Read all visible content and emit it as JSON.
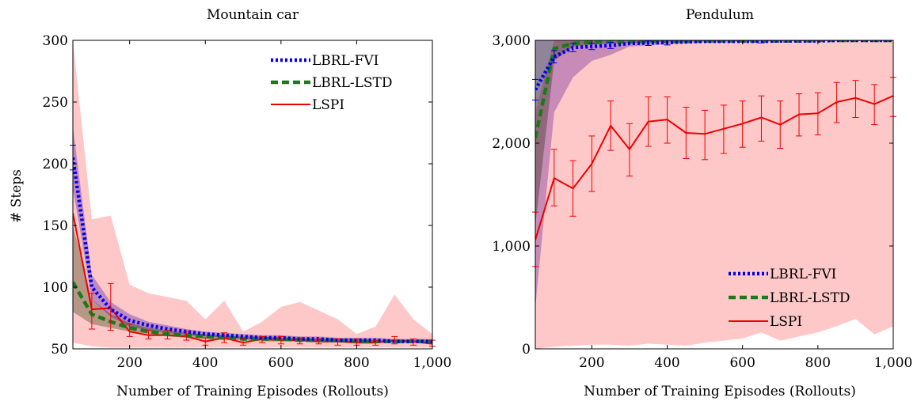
{
  "chart_data": [
    {
      "type": "line",
      "title": "Mountain car",
      "xlabel": "Number of Training Episodes (Rollouts)",
      "ylabel": "# Steps",
      "xlim": [
        50,
        1000
      ],
      "ylim": [
        50,
        300
      ],
      "xticks": [
        200,
        400,
        600,
        800,
        1000
      ],
      "xtick_labels": [
        "200",
        "400",
        "600",
        "800",
        "1,000"
      ],
      "yticks": [
        50,
        100,
        150,
        200,
        250,
        300
      ],
      "ytick_labels": [
        "50",
        "100",
        "150",
        "200",
        "250",
        "300"
      ],
      "grid": false,
      "legend_position": "top-right",
      "x": [
        50,
        100,
        150,
        200,
        250,
        300,
        350,
        400,
        450,
        500,
        550,
        600,
        650,
        700,
        750,
        800,
        850,
        900,
        950,
        1000
      ],
      "series": [
        {
          "name": "LBRL-FVI",
          "color": "#0000ee",
          "style": "dotted",
          "values": [
            205,
            100,
            82,
            73,
            69,
            66,
            64,
            62,
            61,
            60,
            59,
            59,
            58,
            58,
            57,
            57,
            57,
            56,
            56,
            56
          ],
          "band_upper": [
            230,
            110,
            88,
            78,
            72,
            69,
            66,
            64,
            63,
            62,
            61,
            61,
            60,
            60,
            59,
            59,
            59,
            58,
            58,
            58
          ],
          "band_lower": [
            180,
            90,
            76,
            68,
            65,
            63,
            61,
            60,
            59,
            58,
            57,
            57,
            56,
            56,
            56,
            55,
            55,
            55,
            55,
            54
          ],
          "band_color": "#8a6ee6",
          "error_bars": [
            {
              "x": 50,
              "low": 195,
              "high": 215
            }
          ]
        },
        {
          "name": "LBRL-LSTD",
          "color": "#1a7a1a",
          "style": "dashed",
          "values": [
            104,
            78,
            72,
            67,
            64,
            62,
            61,
            60,
            59,
            58,
            58,
            58,
            57,
            57,
            57,
            56,
            56,
            56,
            56,
            56
          ],
          "band_upper": [
            150,
            90,
            78,
            71,
            67,
            65,
            63,
            62,
            61,
            60,
            60,
            59,
            59,
            58,
            58,
            58,
            57,
            57,
            57,
            57
          ],
          "band_lower": [
            80,
            70,
            67,
            64,
            62,
            60,
            59,
            58,
            57,
            57,
            56,
            56,
            56,
            55,
            55,
            55,
            55,
            55,
            55,
            55
          ],
          "band_color": "#7a8a60",
          "error_bars": []
        },
        {
          "name": "LSPI",
          "color": "#ee0000",
          "style": "solid",
          "values": [
            160,
            82,
            83,
            64,
            61,
            61,
            60,
            56,
            59,
            55,
            58,
            57,
            57,
            56,
            56,
            55,
            55,
            57,
            56,
            54
          ],
          "band_upper": [
            300,
            155,
            158,
            102,
            95,
            92,
            89,
            74,
            89,
            64,
            72,
            84,
            88,
            81,
            74,
            62,
            68,
            94,
            74,
            62
          ],
          "band_lower": [
            55,
            52,
            51,
            51,
            51,
            51,
            51,
            51,
            51,
            51,
            51,
            51,
            51,
            51,
            51,
            51,
            51,
            51,
            51,
            51
          ],
          "band_color": "#ffc8c8",
          "error_bars": [
            {
              "x": 100,
              "low": 66,
              "high": 95
            },
            {
              "x": 150,
              "low": 65,
              "high": 103
            },
            {
              "x": 200,
              "low": 60,
              "high": 70
            },
            {
              "x": 250,
              "low": 58,
              "high": 65
            },
            {
              "x": 300,
              "low": 58,
              "high": 65
            },
            {
              "x": 350,
              "low": 57,
              "high": 64
            },
            {
              "x": 400,
              "low": 53,
              "high": 59
            },
            {
              "x": 450,
              "low": 55,
              "high": 63
            },
            {
              "x": 500,
              "low": 53,
              "high": 58
            },
            {
              "x": 550,
              "low": 55,
              "high": 60
            },
            {
              "x": 600,
              "low": 54,
              "high": 60
            },
            {
              "x": 650,
              "low": 54,
              "high": 59
            },
            {
              "x": 700,
              "low": 54,
              "high": 58
            },
            {
              "x": 750,
              "low": 53,
              "high": 58
            },
            {
              "x": 800,
              "low": 53,
              "high": 58
            },
            {
              "x": 850,
              "low": 53,
              "high": 57
            },
            {
              "x": 900,
              "low": 54,
              "high": 60
            },
            {
              "x": 950,
              "low": 53,
              "high": 58
            },
            {
              "x": 1000,
              "low": 52,
              "high": 57
            }
          ]
        }
      ]
    },
    {
      "type": "line",
      "title": "Pendulum",
      "xlabel": "Number of Training Episodes (Rollouts)",
      "ylabel": "",
      "xlim": [
        50,
        1000
      ],
      "ylim": [
        0,
        3000
      ],
      "xticks": [
        200,
        400,
        600,
        800,
        1000
      ],
      "xtick_labels": [
        "200",
        "400",
        "600",
        "800",
        "1,000"
      ],
      "yticks": [
        0,
        1000,
        2000,
        3000
      ],
      "ytick_labels": [
        "0",
        "1,000",
        "2,000",
        "3,000"
      ],
      "grid": false,
      "legend_position": "bottom-right",
      "x": [
        50,
        100,
        150,
        200,
        250,
        300,
        350,
        400,
        450,
        500,
        550,
        600,
        650,
        700,
        750,
        800,
        850,
        900,
        950,
        1000
      ],
      "series": [
        {
          "name": "LBRL-FVI",
          "color": "#0000ee",
          "style": "dotted",
          "values": [
            2520,
            2840,
            2930,
            2940,
            2950,
            2970,
            2975,
            2980,
            2985,
            2990,
            2990,
            2990,
            2990,
            2995,
            2995,
            2995,
            3000,
            3000,
            3000,
            3000
          ],
          "band_upper": [
            3000,
            3000,
            3000,
            3000,
            3000,
            3000,
            3000,
            3000,
            3000,
            3000,
            3000,
            3000,
            3000,
            3000,
            3000,
            3000,
            3000,
            3000,
            3000,
            3000
          ],
          "band_lower": [
            400,
            2300,
            2640,
            2800,
            2860,
            2940,
            2950,
            2960,
            2970,
            2980,
            2980,
            2985,
            2985,
            2990,
            2990,
            2990,
            2995,
            2995,
            2995,
            2995
          ],
          "band_color": "#9a70d8",
          "error_bars": [
            {
              "x": 50,
              "low": 2420,
              "high": 2620
            },
            {
              "x": 100,
              "low": 2780,
              "high": 2900
            },
            {
              "x": 150,
              "low": 2890,
              "high": 2970
            },
            {
              "x": 200,
              "low": 2910,
              "high": 2970
            },
            {
              "x": 250,
              "low": 2920,
              "high": 2980
            },
            {
              "x": 350,
              "low": 2950,
              "high": 2995
            },
            {
              "x": 400,
              "low": 2955,
              "high": 3000
            },
            {
              "x": 650,
              "low": 2975,
              "high": 3000
            }
          ]
        },
        {
          "name": "LBRL-LSTD",
          "color": "#1a7a1a",
          "style": "dashed",
          "values": [
            2050,
            2920,
            2970,
            2980,
            2985,
            2985,
            2990,
            2990,
            2990,
            2995,
            2995,
            2995,
            2995,
            2995,
            2995,
            3000,
            3000,
            3000,
            3000,
            3000
          ],
          "band_upper": [
            3000,
            3000,
            3000,
            3000,
            3000,
            3000,
            3000,
            3000,
            3000,
            3000,
            3000,
            3000,
            3000,
            3000,
            3000,
            3000,
            3000,
            3000,
            3000,
            3000
          ],
          "band_lower": [
            1200,
            2800,
            2940,
            2960,
            2970,
            2975,
            2980,
            2985,
            2985,
            2990,
            2990,
            2990,
            2990,
            2990,
            2990,
            2995,
            2995,
            2995,
            2995,
            2995
          ],
          "band_color": "#7a8a60",
          "error_bars": []
        },
        {
          "name": "LSPI",
          "color": "#ee0000",
          "style": "solid",
          "values": [
            1060,
            1660,
            1560,
            1800,
            2170,
            1940,
            2210,
            2230,
            2100,
            2090,
            2140,
            2190,
            2250,
            2180,
            2280,
            2290,
            2400,
            2440,
            2380,
            2460
          ],
          "band_upper": [
            2300,
            3000,
            3000,
            3000,
            3000,
            3000,
            3000,
            3000,
            3000,
            3000,
            3000,
            3000,
            3000,
            3000,
            3000,
            3000,
            3000,
            3000,
            3000,
            3000
          ],
          "band_lower": [
            0,
            20,
            30,
            40,
            40,
            30,
            50,
            40,
            30,
            60,
            80,
            100,
            160,
            80,
            120,
            160,
            220,
            290,
            140,
            220
          ],
          "band_color": "#ffc8c8",
          "error_bars": [
            {
              "x": 50,
              "low": 800,
              "high": 1330
            },
            {
              "x": 100,
              "low": 1390,
              "high": 1940
            },
            {
              "x": 150,
              "low": 1290,
              "high": 1830
            },
            {
              "x": 200,
              "low": 1530,
              "high": 2070
            },
            {
              "x": 250,
              "low": 1930,
              "high": 2410
            },
            {
              "x": 300,
              "low": 1680,
              "high": 2190
            },
            {
              "x": 350,
              "low": 1970,
              "high": 2450
            },
            {
              "x": 400,
              "low": 2000,
              "high": 2450
            },
            {
              "x": 450,
              "low": 1850,
              "high": 2350
            },
            {
              "x": 500,
              "low": 1840,
              "high": 2320
            },
            {
              "x": 550,
              "low": 1900,
              "high": 2370
            },
            {
              "x": 600,
              "low": 1960,
              "high": 2410
            },
            {
              "x": 650,
              "low": 2020,
              "high": 2460
            },
            {
              "x": 700,
              "low": 1950,
              "high": 2410
            },
            {
              "x": 750,
              "low": 2070,
              "high": 2480
            },
            {
              "x": 800,
              "low": 2080,
              "high": 2490
            },
            {
              "x": 850,
              "low": 2200,
              "high": 2590
            },
            {
              "x": 900,
              "low": 2250,
              "high": 2610
            },
            {
              "x": 950,
              "low": 2180,
              "high": 2570
            },
            {
              "x": 1000,
              "low": 2260,
              "high": 2640
            }
          ]
        }
      ]
    }
  ]
}
